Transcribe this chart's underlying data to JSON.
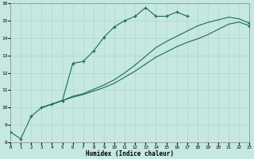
{
  "xlabel": "Humidex (Indice chaleur)",
  "bg_color": "#c5e8e0",
  "line_color": "#1a6b5a",
  "grid_color": "#b8d8d0",
  "xlim": [
    0,
    23
  ],
  "ylim": [
    8,
    16
  ],
  "xticks": [
    0,
    1,
    2,
    3,
    4,
    5,
    6,
    7,
    8,
    9,
    10,
    11,
    12,
    13,
    14,
    15,
    16,
    17,
    18,
    19,
    20,
    21,
    22,
    23
  ],
  "yticks": [
    8,
    9,
    10,
    11,
    12,
    13,
    14,
    15,
    16
  ],
  "line1_x": [
    0,
    1,
    2,
    3,
    4,
    5,
    6,
    7,
    8,
    9,
    10,
    11,
    12,
    13,
    14,
    15,
    16,
    17
  ],
  "line1_y": [
    8.6,
    8.2,
    9.5,
    10.0,
    10.2,
    10.4,
    12.55,
    12.65,
    13.25,
    14.05,
    14.65,
    15.0,
    15.25,
    15.75,
    15.25,
    15.25,
    15.5,
    15.25
  ],
  "line2_x": [
    3,
    4,
    5,
    6,
    7,
    8,
    9,
    10,
    11,
    12,
    13,
    14,
    15,
    16,
    17,
    18,
    19,
    20,
    21,
    22,
    23
  ],
  "line2_y": [
    10.0,
    10.2,
    10.4,
    10.6,
    10.75,
    10.95,
    11.15,
    11.4,
    11.75,
    12.1,
    12.5,
    12.9,
    13.2,
    13.5,
    13.75,
    13.95,
    14.2,
    14.5,
    14.8,
    14.92,
    14.7
  ],
  "line3_x": [
    3,
    4,
    5,
    6,
    7,
    8,
    9,
    10,
    11,
    12,
    13,
    14,
    15,
    16,
    17,
    18,
    19,
    20,
    21,
    22,
    23
  ],
  "line3_y": [
    10.0,
    10.2,
    10.4,
    10.65,
    10.8,
    11.05,
    11.3,
    11.6,
    12.0,
    12.45,
    12.95,
    13.45,
    13.8,
    14.1,
    14.4,
    14.7,
    14.9,
    15.05,
    15.2,
    15.1,
    14.85
  ]
}
